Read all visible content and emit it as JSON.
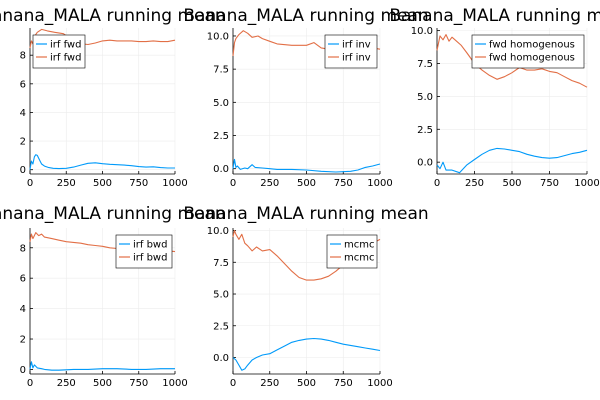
{
  "colors": {
    "series1": "#009AFA",
    "series2": "#E26F46",
    "grid": "#ECECEC",
    "axis": "#000000"
  },
  "chart_data": [
    {
      "type": "line",
      "title": "Banana_MALA running mean",
      "xlim": [
        0,
        1000
      ],
      "ylim": [
        -0.3,
        9.9
      ],
      "xticks": [
        0,
        250,
        500,
        750,
        1000
      ],
      "yticks": [
        0,
        2,
        4,
        6,
        8
      ],
      "ytick_labels": [
        "0",
        "2",
        "4",
        "6",
        "8"
      ],
      "legend_position": "top-left",
      "grid": true,
      "series": [
        {
          "name": "irf fwd",
          "color": "series1",
          "x": [
            0,
            10,
            20,
            30,
            40,
            50,
            60,
            70,
            80,
            100,
            130,
            160,
            200,
            250,
            300,
            350,
            400,
            450,
            500,
            550,
            600,
            650,
            700,
            750,
            800,
            850,
            900,
            950,
            1000
          ],
          "y": [
            0.0,
            0.6,
            0.4,
            0.9,
            1.05,
            1.0,
            0.8,
            0.6,
            0.4,
            0.25,
            0.15,
            0.1,
            0.08,
            0.1,
            0.18,
            0.32,
            0.45,
            0.48,
            0.42,
            0.38,
            0.35,
            0.32,
            0.28,
            0.22,
            0.18,
            0.2,
            0.15,
            0.12,
            0.12
          ]
        },
        {
          "name": "irf fwd",
          "color": "series2",
          "x": [
            0,
            10,
            20,
            30,
            50,
            80,
            120,
            170,
            230,
            300,
            350,
            400,
            450,
            500,
            550,
            600,
            650,
            700,
            750,
            800,
            850,
            900,
            950,
            1000
          ],
          "y": [
            8.5,
            9.0,
            8.8,
            9.3,
            9.6,
            9.8,
            9.7,
            9.6,
            9.5,
            9.0,
            8.8,
            8.75,
            8.85,
            9.0,
            9.05,
            9.0,
            9.0,
            9.0,
            8.95,
            8.95,
            9.0,
            8.95,
            8.95,
            9.05
          ]
        }
      ]
    },
    {
      "type": "line",
      "title": "Banana_MALA running mean",
      "xlim": [
        0,
        1000
      ],
      "ylim": [
        -0.4,
        10.6
      ],
      "xticks": [
        0,
        250,
        500,
        750,
        1000
      ],
      "yticks": [
        0,
        2.5,
        5,
        7.5,
        10
      ],
      "ytick_labels": [
        "0.0",
        "2.5",
        "5.0",
        "7.5",
        "10.0"
      ],
      "legend_position": "top-right",
      "grid": true,
      "series": [
        {
          "name": "irf inv",
          "color": "series1",
          "x": [
            0,
            10,
            20,
            30,
            50,
            80,
            100,
            130,
            150,
            200,
            250,
            300,
            400,
            500,
            600,
            700,
            800,
            850,
            900,
            950,
            1000
          ],
          "y": [
            0.0,
            0.7,
            0.1,
            0.2,
            -0.05,
            0.05,
            0.0,
            0.3,
            0.1,
            0.05,
            0.0,
            -0.05,
            -0.05,
            -0.1,
            -0.2,
            -0.25,
            -0.2,
            -0.1,
            0.1,
            0.2,
            0.35
          ]
        },
        {
          "name": "irf inv",
          "color": "series2",
          "x": [
            0,
            10,
            20,
            40,
            70,
            100,
            130,
            170,
            200,
            250,
            300,
            400,
            500,
            550,
            600,
            650,
            700,
            750,
            800,
            850,
            900,
            950,
            1000
          ],
          "y": [
            8.5,
            9.5,
            9.8,
            10.1,
            10.4,
            10.2,
            9.9,
            10.0,
            9.8,
            9.6,
            9.4,
            9.3,
            9.3,
            9.5,
            9.1,
            9.0,
            8.9,
            8.9,
            8.7,
            8.9,
            9.2,
            9.1,
            9.0
          ]
        }
      ]
    },
    {
      "type": "line",
      "title": "Banana_MALA running mean",
      "xlim": [
        0,
        1000
      ],
      "ylim": [
        -0.9,
        10.2
      ],
      "xticks": [
        0,
        250,
        500,
        750,
        1000
      ],
      "yticks": [
        0,
        2.5,
        5,
        7.5,
        10
      ],
      "ytick_labels": [
        "0.0",
        "2.5",
        "5.0",
        "7.5",
        "10.0"
      ],
      "legend_position": "top-right",
      "grid": true,
      "series": [
        {
          "name": "fwd homogenous",
          "color": "series1",
          "x": [
            0,
            20,
            40,
            60,
            80,
            100,
            150,
            200,
            250,
            300,
            350,
            400,
            450,
            500,
            550,
            600,
            650,
            700,
            750,
            800,
            850,
            900,
            950,
            1000
          ],
          "y": [
            -0.2,
            -0.5,
            0.0,
            -0.6,
            -0.6,
            -0.6,
            -0.8,
            -0.2,
            0.2,
            0.6,
            0.9,
            1.05,
            1.0,
            0.9,
            0.8,
            0.6,
            0.45,
            0.35,
            0.3,
            0.35,
            0.5,
            0.65,
            0.75,
            0.9
          ]
        },
        {
          "name": "fwd homogenous",
          "color": "series2",
          "x": [
            0,
            20,
            40,
            60,
            80,
            100,
            120,
            160,
            200,
            250,
            300,
            350,
            400,
            450,
            500,
            550,
            600,
            650,
            700,
            750,
            800,
            850,
            900,
            950,
            1000
          ],
          "y": [
            8.5,
            9.6,
            9.3,
            9.7,
            9.2,
            9.5,
            9.3,
            8.9,
            8.3,
            7.5,
            7.0,
            6.6,
            6.3,
            6.5,
            6.8,
            7.2,
            7.0,
            7.0,
            7.1,
            6.9,
            6.8,
            6.5,
            6.2,
            6.0,
            5.7
          ]
        }
      ]
    },
    {
      "type": "line",
      "title": "Banana_MALA running mean",
      "xlim": [
        0,
        1000
      ],
      "ylim": [
        -0.3,
        9.3
      ],
      "xticks": [
        0,
        250,
        500,
        750,
        1000
      ],
      "yticks": [
        0,
        2,
        4,
        6,
        8
      ],
      "ytick_labels": [
        "0",
        "2",
        "4",
        "6",
        "8"
      ],
      "legend_position": "top-right",
      "grid": true,
      "series": [
        {
          "name": "irf bwd",
          "color": "series1",
          "x": [
            0,
            10,
            20,
            30,
            50,
            80,
            100,
            150,
            200,
            300,
            400,
            500,
            600,
            700,
            800,
            900,
            1000
          ],
          "y": [
            0.0,
            0.5,
            0.1,
            0.3,
            0.1,
            0.05,
            0.0,
            -0.05,
            -0.05,
            0.0,
            0.0,
            0.05,
            0.05,
            0.0,
            0.0,
            0.05,
            0.05
          ]
        },
        {
          "name": "irf bwd",
          "color": "series2",
          "x": [
            0,
            10,
            20,
            40,
            60,
            80,
            100,
            150,
            200,
            250,
            300,
            350,
            400,
            450,
            500,
            550,
            600,
            650,
            700,
            750,
            800,
            850,
            900,
            950,
            1000
          ],
          "y": [
            8.4,
            8.9,
            8.6,
            9.0,
            8.8,
            8.9,
            8.7,
            8.6,
            8.5,
            8.4,
            8.35,
            8.3,
            8.2,
            8.15,
            8.1,
            8.0,
            7.95,
            7.9,
            7.9,
            7.85,
            7.85,
            7.8,
            7.8,
            7.8,
            7.75
          ]
        }
      ]
    },
    {
      "type": "line",
      "title": "Banana_MALA running mean",
      "xlim": [
        0,
        1000
      ],
      "ylim": [
        -1.3,
        10.2
      ],
      "xticks": [
        0,
        250,
        500,
        750,
        1000
      ],
      "yticks": [
        0,
        2.5,
        5,
        7.5,
        10
      ],
      "ytick_labels": [
        "0.0",
        "2.5",
        "5.0",
        "7.5",
        "10.0"
      ],
      "legend_position": "top-right",
      "grid": true,
      "series": [
        {
          "name": "mcmc",
          "color": "series1",
          "x": [
            0,
            20,
            40,
            60,
            80,
            100,
            130,
            160,
            200,
            250,
            300,
            350,
            400,
            450,
            500,
            550,
            600,
            650,
            700,
            750,
            800,
            850,
            900,
            950,
            1000
          ],
          "y": [
            0.0,
            -0.2,
            -0.6,
            -1.0,
            -0.9,
            -0.6,
            -0.2,
            0.0,
            0.2,
            0.3,
            0.6,
            0.9,
            1.2,
            1.35,
            1.45,
            1.5,
            1.45,
            1.35,
            1.2,
            1.05,
            0.95,
            0.85,
            0.75,
            0.65,
            0.55
          ]
        },
        {
          "name": "mcmc",
          "color": "series2",
          "x": [
            0,
            10,
            20,
            40,
            60,
            80,
            100,
            130,
            160,
            200,
            250,
            300,
            350,
            400,
            450,
            500,
            550,
            600,
            650,
            700,
            750,
            800,
            850,
            900,
            950,
            1000
          ],
          "y": [
            9.5,
            10.0,
            9.7,
            9.3,
            9.7,
            9.0,
            8.8,
            8.4,
            8.7,
            8.4,
            8.5,
            8.0,
            7.4,
            6.8,
            6.3,
            6.1,
            6.1,
            6.2,
            6.4,
            6.8,
            7.3,
            7.8,
            8.3,
            8.7,
            9.0,
            9.3
          ]
        }
      ]
    }
  ]
}
